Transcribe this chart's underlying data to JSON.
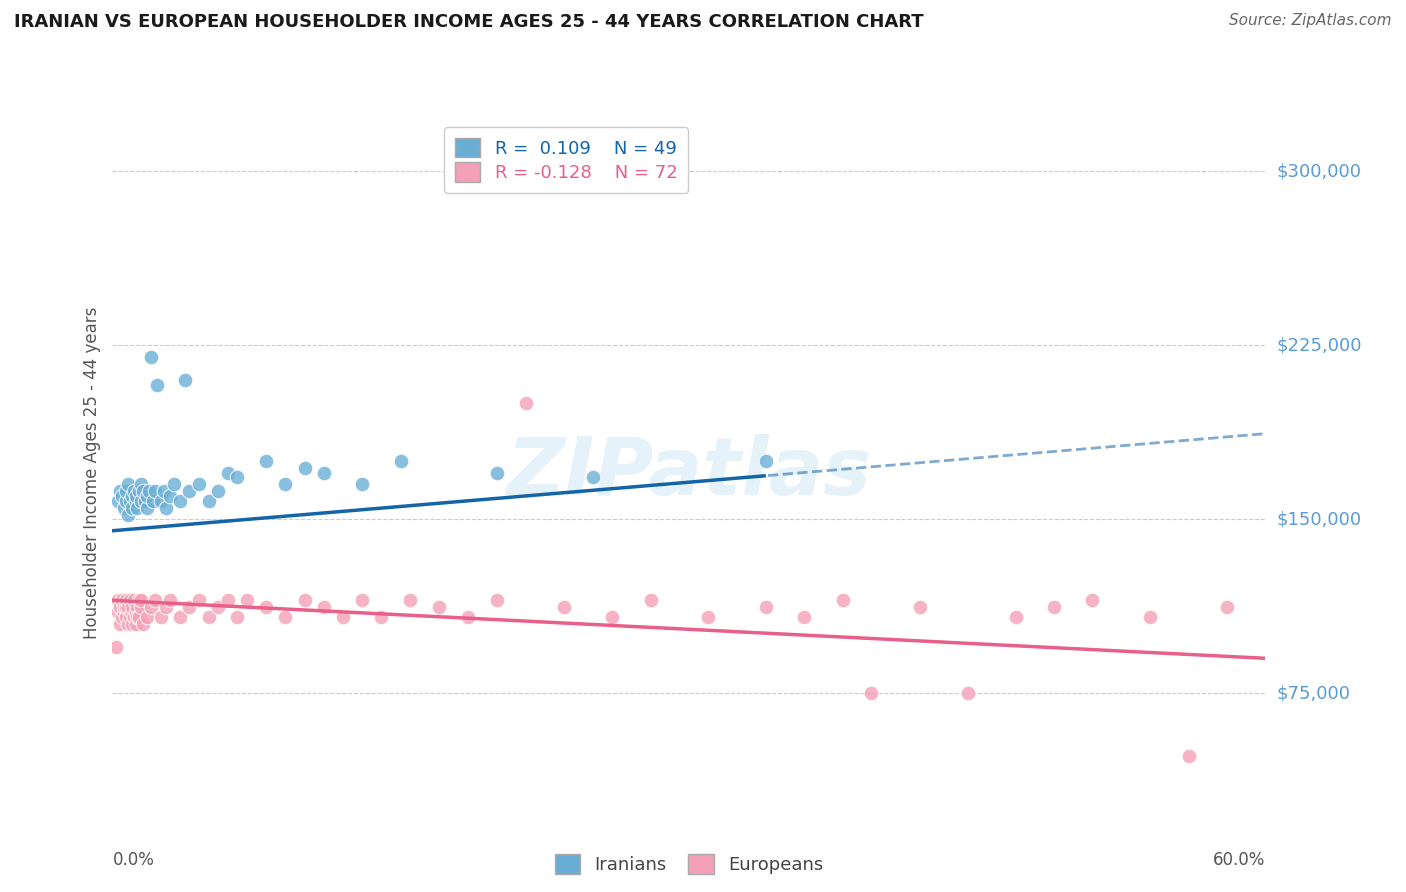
{
  "title": "IRANIAN VS EUROPEAN HOUSEHOLDER INCOME AGES 25 - 44 YEARS CORRELATION CHART",
  "source": "Source: ZipAtlas.com",
  "ylabel": "Householder Income Ages 25 - 44 years",
  "r_iranian": 0.109,
  "n_iranian": 49,
  "r_european": -0.128,
  "n_european": 72,
  "yticks": [
    75000,
    150000,
    225000,
    300000
  ],
  "ytick_labels": [
    "$75,000",
    "$150,000",
    "$225,000",
    "$300,000"
  ],
  "xmin": 0.0,
  "xmax": 0.6,
  "ymin": 20000,
  "ymax": 320000,
  "blue_color": "#6aaed6",
  "blue_line_color": "#1464a8",
  "pink_color": "#f4a0b8",
  "pink_line_color": "#e8608a",
  "background_color": "#ffffff",
  "watermark": "ZIPatlas",
  "iranian_x": [
    0.003,
    0.004,
    0.005,
    0.006,
    0.007,
    0.007,
    0.008,
    0.008,
    0.009,
    0.01,
    0.01,
    0.011,
    0.012,
    0.012,
    0.013,
    0.014,
    0.015,
    0.015,
    0.016,
    0.017,
    0.018,
    0.018,
    0.019,
    0.02,
    0.021,
    0.022,
    0.023,
    0.025,
    0.027,
    0.028,
    0.03,
    0.032,
    0.035,
    0.038,
    0.04,
    0.045,
    0.05,
    0.055,
    0.06,
    0.065,
    0.08,
    0.09,
    0.1,
    0.11,
    0.13,
    0.15,
    0.2,
    0.25,
    0.34
  ],
  "iranian_y": [
    158000,
    162000,
    160000,
    155000,
    158000,
    162000,
    152000,
    165000,
    158000,
    160000,
    155000,
    162000,
    158000,
    160000,
    155000,
    162000,
    158000,
    165000,
    162000,
    158000,
    155000,
    160000,
    162000,
    220000,
    158000,
    162000,
    208000,
    158000,
    162000,
    155000,
    160000,
    165000,
    158000,
    210000,
    162000,
    165000,
    158000,
    162000,
    170000,
    168000,
    175000,
    165000,
    172000,
    170000,
    165000,
    175000,
    170000,
    168000,
    175000
  ],
  "european_x": [
    0.002,
    0.003,
    0.003,
    0.004,
    0.004,
    0.005,
    0.005,
    0.006,
    0.006,
    0.007,
    0.007,
    0.007,
    0.008,
    0.008,
    0.009,
    0.009,
    0.01,
    0.01,
    0.01,
    0.011,
    0.011,
    0.012,
    0.012,
    0.013,
    0.013,
    0.014,
    0.014,
    0.015,
    0.015,
    0.016,
    0.018,
    0.02,
    0.022,
    0.025,
    0.028,
    0.03,
    0.035,
    0.04,
    0.045,
    0.05,
    0.055,
    0.06,
    0.065,
    0.07,
    0.08,
    0.09,
    0.1,
    0.11,
    0.12,
    0.13,
    0.14,
    0.155,
    0.17,
    0.185,
    0.2,
    0.215,
    0.235,
    0.26,
    0.28,
    0.31,
    0.34,
    0.36,
    0.38,
    0.395,
    0.42,
    0.445,
    0.47,
    0.49,
    0.51,
    0.54,
    0.56,
    0.58
  ],
  "european_y": [
    95000,
    110000,
    115000,
    105000,
    112000,
    108000,
    115000,
    110000,
    112000,
    108000,
    112000,
    115000,
    105000,
    112000,
    108000,
    115000,
    110000,
    105000,
    112000,
    108000,
    115000,
    110000,
    105000,
    112000,
    108000,
    115000,
    108000,
    112000,
    115000,
    105000,
    108000,
    112000,
    115000,
    108000,
    112000,
    115000,
    108000,
    112000,
    115000,
    108000,
    112000,
    115000,
    108000,
    115000,
    112000,
    108000,
    115000,
    112000,
    108000,
    115000,
    108000,
    115000,
    112000,
    108000,
    115000,
    200000,
    112000,
    108000,
    115000,
    108000,
    112000,
    108000,
    115000,
    75000,
    112000,
    75000,
    108000,
    112000,
    115000,
    108000,
    48000,
    112000
  ]
}
